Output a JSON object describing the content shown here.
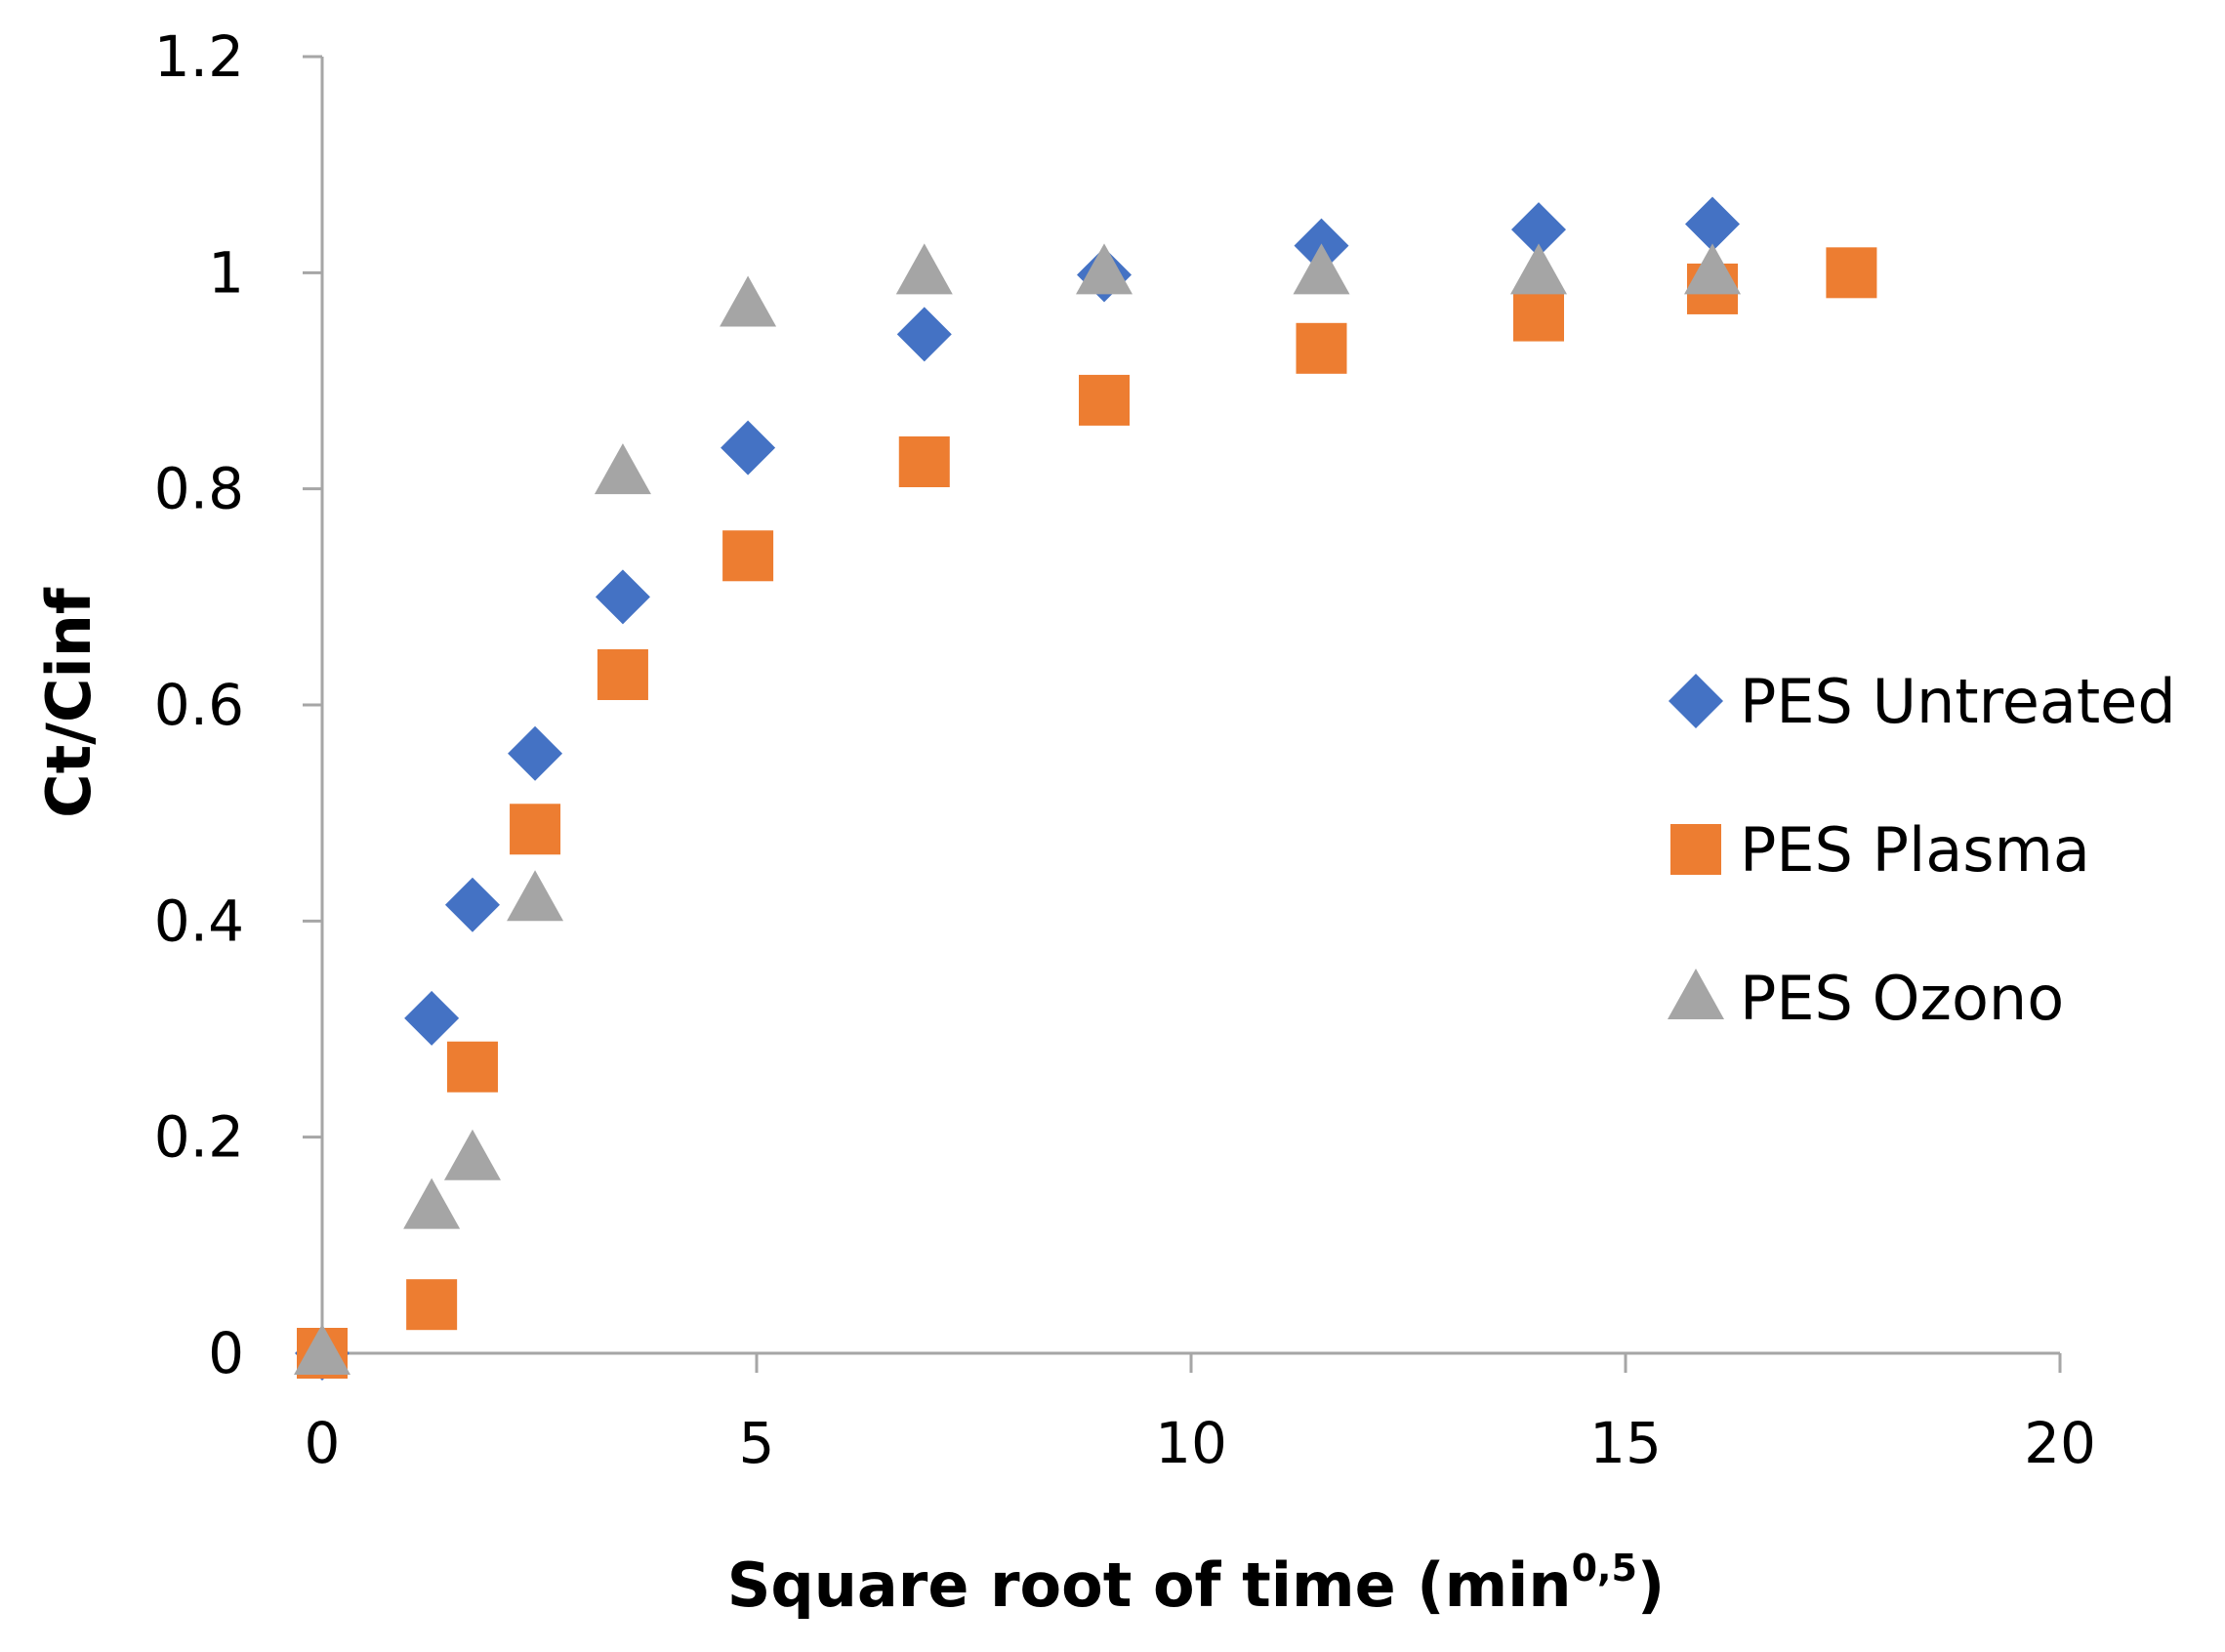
{
  "chart_data": {
    "type": "scatter",
    "title": "",
    "xlabel": "Square root of time (min",
    "xlabel_superscript": "0,5",
    "xlabel_suffix": ")",
    "ylabel": "Ct/Cinf",
    "xlim": [
      0,
      20
    ],
    "ylim": [
      0,
      1.2
    ],
    "xticks": [
      0,
      5,
      10,
      15,
      20
    ],
    "yticks": [
      0,
      0.2,
      0.4,
      0.6,
      0.8,
      1,
      1.2
    ],
    "xtick_labels": [
      "0",
      "5",
      "10",
      "15",
      "20"
    ],
    "ytick_labels": [
      "0",
      "0.2",
      "0.4",
      "0.6",
      "0.8",
      "1",
      "1.2"
    ],
    "grid": false,
    "legend_position": "right",
    "series": [
      {
        "name": "PES Untreated",
        "marker": "diamond",
        "color": "#4472C4",
        "x": [
          0,
          1.26,
          1.73,
          2.45,
          3.46,
          4.9,
          6.93,
          9.0,
          11.5,
          14.0,
          16.0
        ],
        "y": [
          0,
          0.31,
          0.415,
          0.555,
          0.7,
          0.838,
          0.943,
          0.998,
          1.025,
          1.04,
          1.045
        ]
      },
      {
        "name": "PES Plasma",
        "marker": "square",
        "color": "#ED7D31",
        "x": [
          0,
          1.26,
          1.73,
          2.45,
          3.46,
          4.9,
          6.93,
          9.0,
          11.5,
          14.0,
          16.0,
          17.6
        ],
        "y": [
          0,
          0.045,
          0.265,
          0.485,
          0.628,
          0.738,
          0.825,
          0.882,
          0.93,
          0.96,
          0.985,
          1.0
        ]
      },
      {
        "name": "PES Ozono",
        "marker": "triangle",
        "color": "#A5A5A5",
        "x": [
          0,
          1.26,
          1.73,
          2.45,
          3.46,
          4.9,
          6.93,
          9.0,
          11.5,
          14.0,
          16.0
        ],
        "y": [
          0,
          0.135,
          0.18,
          0.42,
          0.815,
          0.97,
          1.0,
          1.0,
          1.0,
          1.0,
          1.0
        ]
      }
    ]
  },
  "colors": {
    "axis": "#A6A6A6",
    "text": "#000000"
  }
}
